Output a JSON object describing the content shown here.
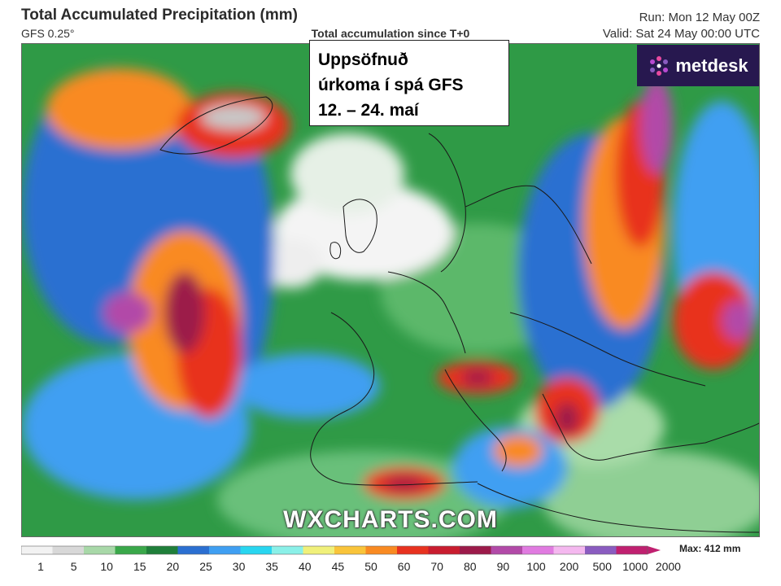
{
  "header": {
    "title": "Total Accumulated Precipitation (mm)",
    "model": "GFS 0.25°",
    "subtitle": "Total accumulation since T+0",
    "run": "Run: Mon 12 May 00Z",
    "valid": "Valid: Sat 24 May 00:00 UTC"
  },
  "caption": {
    "line1": "Uppsöfnuð",
    "line2": "úrkoma í spá GFS",
    "line3": "12. – 24. maí"
  },
  "logo": {
    "text": "metdesk"
  },
  "watermark": "WXCHARTS.COM",
  "scale": {
    "labels": [
      "1",
      "5",
      "10",
      "15",
      "20",
      "25",
      "30",
      "35",
      "40",
      "45",
      "50",
      "60",
      "70",
      "80",
      "90",
      "100",
      "200",
      "500",
      "1000",
      "2000"
    ],
    "colors": [
      "#f2f2f2",
      "#d8d8d8",
      "#a8d8a8",
      "#3aa84a",
      "#1f7f3a",
      "#2b6fd1",
      "#3f9ff2",
      "#28d6f0",
      "#8af0e8",
      "#f0f07a",
      "#f9c43a",
      "#f98a22",
      "#e8321f",
      "#c91c2f",
      "#9c1a4a",
      "#b24aa8",
      "#e07be0",
      "#f4b8ef",
      "#8a5cc0",
      "#c02070"
    ],
    "max_label": "Max: 412 mm"
  }
}
